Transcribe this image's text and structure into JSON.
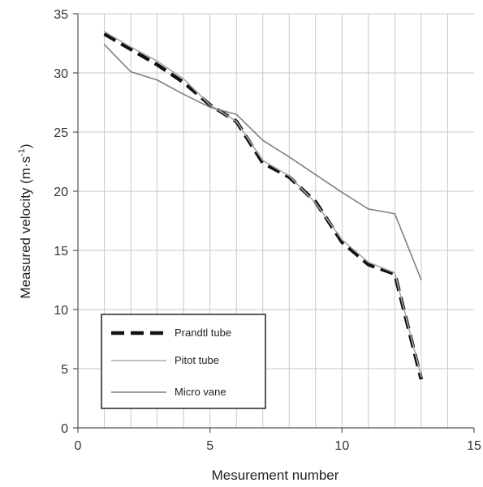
{
  "chart_data": {
    "type": "line",
    "xlabel": "Mesurement number",
    "ylabel": "Measured velocity (m·s",
    "ylabel_superscript": "-1",
    "ylabel_suffix": ")",
    "xlim": [
      0,
      15
    ],
    "ylim": [
      0,
      35
    ],
    "xticks": [
      0,
      5,
      10,
      15
    ],
    "yticks": [
      0,
      5,
      10,
      15,
      20,
      25,
      30,
      35
    ],
    "grid": true,
    "legend_position": "bottom-left",
    "x": [
      1,
      2,
      3,
      4,
      5,
      6,
      7,
      8,
      9,
      10,
      11,
      12,
      13
    ],
    "series": [
      {
        "name": "Prandtl tube",
        "style": "dashed-thick",
        "color": "#111111",
        "values": [
          33.3,
          32.0,
          30.7,
          29.2,
          27.3,
          25.9,
          22.4,
          21.2,
          19.1,
          15.7,
          13.8,
          13.0,
          4.1
        ]
      },
      {
        "name": "Pitot tube",
        "style": "solid-light",
        "color": "#a8a8a8",
        "values": [
          33.5,
          32.2,
          31.0,
          29.5,
          27.3,
          25.9,
          22.6,
          21.3,
          19.0,
          15.9,
          14.0,
          13.1,
          4.3
        ]
      },
      {
        "name": "Micro vane",
        "style": "solid",
        "color": "#7f7f7f",
        "values": [
          32.4,
          30.1,
          29.4,
          28.2,
          27.1,
          26.5,
          24.3,
          22.9,
          21.4,
          19.9,
          18.5,
          18.1,
          12.5
        ]
      }
    ]
  }
}
